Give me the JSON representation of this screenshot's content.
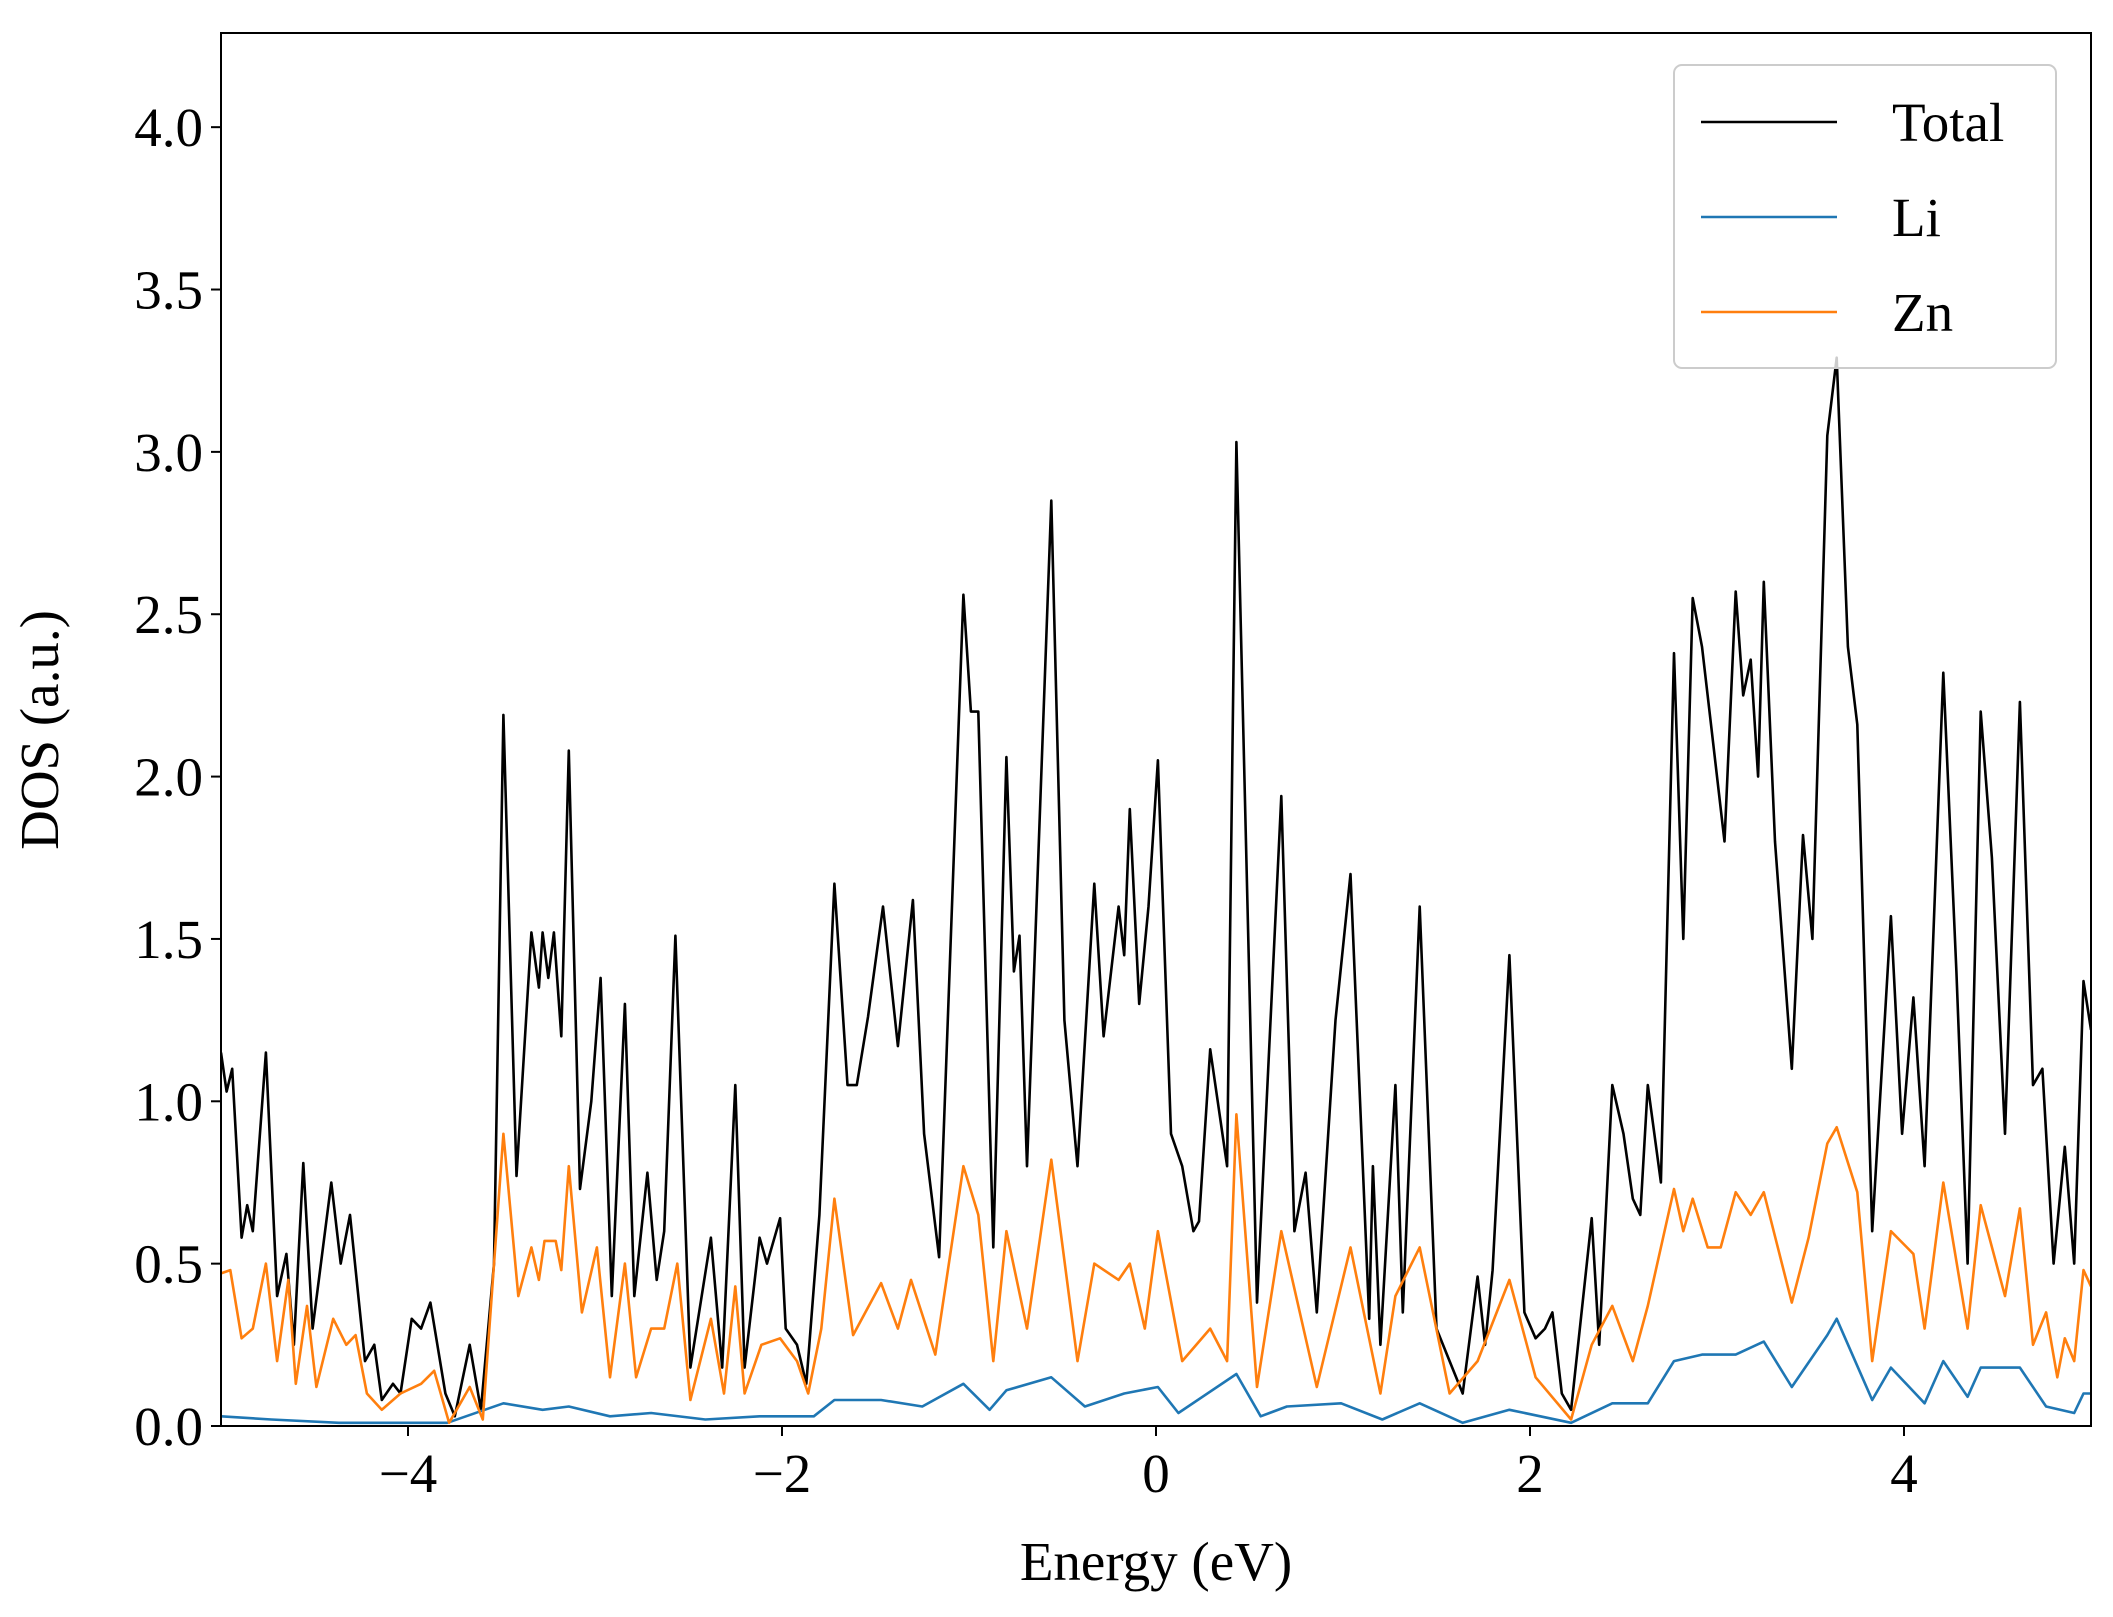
{
  "chart_data": {
    "type": "line",
    "xlabel": "Energy (eV)",
    "ylabel": "DOS (a.u.)",
    "xlim": [
      -5,
      5
    ],
    "ylim": [
      0,
      4.29
    ],
    "xticks": [
      {
        "value": -4,
        "label": "−4"
      },
      {
        "value": -2,
        "label": "−2"
      },
      0,
      2,
      4
    ],
    "yticks": [
      {
        "value": 0,
        "label": "0.0"
      },
      0.5,
      {
        "value": 1,
        "label": "1.0"
      },
      1.5,
      {
        "value": 2,
        "label": "2.0"
      },
      2.5,
      {
        "value": 3,
        "label": "3.0"
      },
      3.5,
      {
        "value": 4,
        "label": "4.0"
      }
    ],
    "grid": false,
    "legend": "upper right",
    "series": [
      {
        "name": "Total",
        "color": "#000000",
        "x": [
          -5.0,
          -4.97,
          -4.94,
          -4.89,
          -4.86,
          -4.83,
          -4.76,
          -4.7,
          -4.65,
          -4.61,
          -4.56,
          -4.51,
          -4.41,
          -4.36,
          -4.31,
          -4.23,
          -4.18,
          -4.14,
          -4.08,
          -4.04,
          -3.98,
          -3.93,
          -3.88,
          -3.8,
          -3.75,
          -3.67,
          -3.61,
          -3.54,
          -3.49,
          -3.42,
          -3.34,
          -3.3,
          -3.28,
          -3.25,
          -3.22,
          -3.18,
          -3.14,
          -3.08,
          -3.02,
          -2.97,
          -2.91,
          -2.84,
          -2.79,
          -2.72,
          -2.67,
          -2.63,
          -2.57,
          -2.49,
          -2.38,
          -2.32,
          -2.25,
          -2.2,
          -2.12,
          -2.08,
          -2.01,
          -1.98,
          -1.92,
          -1.87,
          -1.8,
          -1.72,
          -1.65,
          -1.6,
          -1.54,
          -1.46,
          -1.38,
          -1.3,
          -1.24,
          -1.16,
          -1.03,
          -0.99,
          -0.95,
          -0.87,
          -0.8,
          -0.76,
          -0.73,
          -0.69,
          -0.56,
          -0.49,
          -0.42,
          -0.33,
          -0.28,
          -0.2,
          -0.17,
          -0.14,
          -0.09,
          -0.04,
          0.01,
          0.08,
          0.14,
          0.2,
          0.23,
          0.29,
          0.38,
          0.43,
          0.54,
          0.67,
          0.74,
          0.8,
          0.86,
          0.96,
          1.04,
          1.14,
          1.16,
          1.2,
          1.28,
          1.32,
          1.41,
          1.5,
          1.57,
          1.64,
          1.72,
          1.76,
          1.8,
          1.89,
          1.97,
          2.03,
          2.08,
          2.12,
          2.17,
          2.22,
          2.33,
          2.37,
          2.44,
          2.5,
          2.55,
          2.59,
          2.63,
          2.7,
          2.77,
          2.82,
          2.87,
          2.92,
          2.97,
          3.04,
          3.1,
          3.14,
          3.18,
          3.22,
          3.25,
          3.31,
          3.4,
          3.46,
          3.51,
          3.59,
          3.64,
          3.7,
          3.75,
          3.83,
          3.93,
          3.99,
          4.05,
          4.11,
          4.21,
          4.28,
          4.34,
          4.41,
          4.47,
          4.54,
          4.62,
          4.69,
          4.74,
          4.8,
          4.86,
          4.91,
          4.96,
          5.0
        ],
        "values": [
          1.15,
          1.03,
          1.1,
          0.58,
          0.68,
          0.6,
          1.15,
          0.4,
          0.53,
          0.25,
          0.81,
          0.3,
          0.75,
          0.5,
          0.65,
          0.2,
          0.25,
          0.08,
          0.13,
          0.1,
          0.33,
          0.3,
          0.38,
          0.1,
          0.03,
          0.25,
          0.05,
          0.5,
          2.19,
          0.77,
          1.52,
          1.35,
          1.52,
          1.38,
          1.52,
          1.2,
          2.08,
          0.73,
          1.0,
          1.38,
          0.4,
          1.3,
          0.4,
          0.78,
          0.45,
          0.6,
          1.51,
          0.18,
          0.58,
          0.18,
          1.05,
          0.18,
          0.58,
          0.5,
          0.64,
          0.3,
          0.25,
          0.13,
          0.65,
          1.67,
          1.05,
          1.05,
          1.26,
          1.6,
          1.17,
          1.62,
          0.9,
          0.52,
          2.56,
          2.2,
          2.2,
          0.55,
          2.06,
          1.4,
          1.51,
          0.8,
          2.85,
          1.25,
          0.8,
          1.67,
          1.2,
          1.6,
          1.45,
          1.9,
          1.3,
          1.6,
          2.05,
          0.9,
          0.8,
          0.6,
          0.63,
          1.16,
          0.8,
          3.03,
          0.38,
          1.94,
          0.6,
          0.78,
          0.35,
          1.25,
          1.7,
          0.33,
          0.8,
          0.25,
          1.05,
          0.35,
          1.6,
          0.3,
          0.2,
          0.1,
          0.46,
          0.25,
          0.48,
          1.45,
          0.35,
          0.27,
          0.3,
          0.35,
          0.1,
          0.05,
          0.64,
          0.25,
          1.05,
          0.9,
          0.7,
          0.65,
          1.05,
          0.75,
          2.38,
          1.5,
          2.55,
          2.4,
          2.15,
          1.8,
          2.57,
          2.25,
          2.36,
          2.0,
          2.6,
          1.8,
          1.1,
          1.82,
          1.5,
          3.05,
          3.29,
          2.4,
          2.16,
          0.6,
          1.57,
          0.9,
          1.32,
          0.8,
          2.32,
          1.4,
          0.5,
          2.2,
          1.75,
          0.9,
          2.23,
          1.05,
          1.1,
          0.5,
          0.86,
          0.5,
          1.37,
          1.22
        ]
      },
      {
        "name": "Li",
        "color": "#1f77b4",
        "x": [
          -5.0,
          -4.73,
          -4.37,
          -3.79,
          -3.49,
          -3.28,
          -3.14,
          -2.92,
          -2.7,
          -2.41,
          -2.12,
          -1.83,
          -1.72,
          -1.47,
          -1.25,
          -1.03,
          -0.89,
          -0.8,
          -0.56,
          -0.38,
          -0.17,
          0.01,
          0.12,
          0.43,
          0.56,
          0.7,
          0.99,
          1.21,
          1.41,
          1.64,
          1.89,
          2.22,
          2.44,
          2.63,
          2.77,
          2.92,
          3.1,
          3.25,
          3.4,
          3.59,
          3.64,
          3.83,
          3.93,
          4.11,
          4.21,
          4.34,
          4.41,
          4.62,
          4.76,
          4.91,
          4.96,
          5.0
        ],
        "values": [
          0.03,
          0.02,
          0.01,
          0.01,
          0.07,
          0.05,
          0.06,
          0.03,
          0.04,
          0.02,
          0.03,
          0.03,
          0.08,
          0.08,
          0.06,
          0.13,
          0.05,
          0.11,
          0.15,
          0.06,
          0.1,
          0.12,
          0.04,
          0.16,
          0.03,
          0.06,
          0.07,
          0.02,
          0.07,
          0.01,
          0.05,
          0.01,
          0.07,
          0.07,
          0.2,
          0.22,
          0.22,
          0.26,
          0.12,
          0.28,
          0.33,
          0.08,
          0.18,
          0.07,
          0.2,
          0.09,
          0.18,
          0.18,
          0.06,
          0.04,
          0.1,
          0.1
        ]
      },
      {
        "name": "Zn",
        "color": "#ff7f0e",
        "x": [
          -5.0,
          -4.95,
          -4.89,
          -4.83,
          -4.76,
          -4.7,
          -4.64,
          -4.6,
          -4.54,
          -4.49,
          -4.4,
          -4.33,
          -4.28,
          -4.22,
          -4.14,
          -4.04,
          -3.93,
          -3.86,
          -3.78,
          -3.67,
          -3.6,
          -3.49,
          -3.41,
          -3.34,
          -3.3,
          -3.27,
          -3.21,
          -3.18,
          -3.14,
          -3.07,
          -2.99,
          -2.92,
          -2.84,
          -2.78,
          -2.7,
          -2.63,
          -2.56,
          -2.49,
          -2.38,
          -2.31,
          -2.25,
          -2.2,
          -2.11,
          -2.01,
          -1.92,
          -1.86,
          -1.79,
          -1.72,
          -1.62,
          -1.47,
          -1.38,
          -1.31,
          -1.18,
          -1.03,
          -0.95,
          -0.87,
          -0.8,
          -0.69,
          -0.56,
          -0.42,
          -0.33,
          -0.2,
          -0.14,
          -0.06,
          0.01,
          0.14,
          0.29,
          0.38,
          0.43,
          0.54,
          0.67,
          0.86,
          1.04,
          1.2,
          1.28,
          1.41,
          1.57,
          1.72,
          1.89,
          2.03,
          2.22,
          2.33,
          2.44,
          2.55,
          2.63,
          2.77,
          2.82,
          2.87,
          2.95,
          3.02,
          3.1,
          3.18,
          3.25,
          3.4,
          3.49,
          3.59,
          3.64,
          3.75,
          3.83,
          3.93,
          4.05,
          4.11,
          4.21,
          4.34,
          4.41,
          4.54,
          4.62,
          4.69,
          4.76,
          4.82,
          4.86,
          4.91,
          4.96,
          5.0
        ],
        "values": [
          0.47,
          0.48,
          0.27,
          0.3,
          0.5,
          0.2,
          0.45,
          0.13,
          0.37,
          0.12,
          0.33,
          0.25,
          0.28,
          0.1,
          0.05,
          0.1,
          0.13,
          0.17,
          0.01,
          0.12,
          0.02,
          0.9,
          0.4,
          0.55,
          0.45,
          0.57,
          0.57,
          0.48,
          0.8,
          0.35,
          0.55,
          0.15,
          0.5,
          0.15,
          0.3,
          0.3,
          0.5,
          0.08,
          0.33,
          0.1,
          0.43,
          0.1,
          0.25,
          0.27,
          0.2,
          0.1,
          0.3,
          0.7,
          0.28,
          0.44,
          0.3,
          0.45,
          0.22,
          0.8,
          0.65,
          0.2,
          0.6,
          0.3,
          0.82,
          0.2,
          0.5,
          0.45,
          0.5,
          0.3,
          0.6,
          0.2,
          0.3,
          0.2,
          0.96,
          0.12,
          0.6,
          0.12,
          0.55,
          0.1,
          0.4,
          0.55,
          0.1,
          0.2,
          0.45,
          0.15,
          0.02,
          0.25,
          0.37,
          0.2,
          0.37,
          0.73,
          0.6,
          0.7,
          0.55,
          0.55,
          0.72,
          0.65,
          0.72,
          0.38,
          0.58,
          0.87,
          0.92,
          0.72,
          0.2,
          0.6,
          0.53,
          0.3,
          0.75,
          0.3,
          0.68,
          0.4,
          0.67,
          0.25,
          0.35,
          0.15,
          0.27,
          0.2,
          0.48,
          0.43
        ]
      }
    ]
  }
}
